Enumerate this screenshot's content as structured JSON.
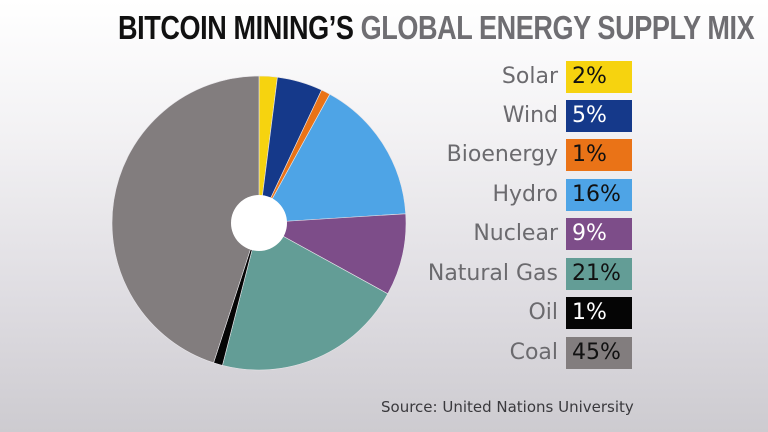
{
  "title": {
    "part1": "BITCOIN MINING’S",
    "part2": "GLOBAL ENERGY SUPPLY MIX"
  },
  "source": "Source: United Nations University",
  "legend": [
    {
      "label": "Solar",
      "value": "2%",
      "color": "#f6d30f",
      "text_color": "#111111"
    },
    {
      "label": "Wind",
      "value": "5%",
      "color": "#15398a",
      "text_color": "#ffffff"
    },
    {
      "label": "Bioenergy",
      "value": "1%",
      "color": "#ea7317",
      "text_color": "#111111"
    },
    {
      "label": "Hydro",
      "value": "16%",
      "color": "#4ea4e6",
      "text_color": "#111111"
    },
    {
      "label": "Nuclear",
      "value": "9%",
      "color": "#7d4d89",
      "text_color": "#ffffff"
    },
    {
      "label": "Natural Gas",
      "value": "21%",
      "color": "#639d96",
      "text_color": "#111111"
    },
    {
      "label": "Oil",
      "value": "1%",
      "color": "#050505",
      "text_color": "#ffffff"
    },
    {
      "label": "Coal",
      "value": "45%",
      "color": "#827d7e",
      "text_color": "#111111"
    }
  ],
  "chart_data": {
    "type": "pie",
    "title": "Bitcoin Mining's Global Energy Supply Mix",
    "categories": [
      "Solar",
      "Wind",
      "Bioenergy",
      "Hydro",
      "Nuclear",
      "Natural Gas",
      "Oil",
      "Coal"
    ],
    "values": [
      2,
      5,
      1,
      16,
      9,
      21,
      1,
      45
    ],
    "unit": "%",
    "colors": [
      "#f6d30f",
      "#15398a",
      "#ea7317",
      "#4ea4e6",
      "#7d4d89",
      "#639d96",
      "#050505",
      "#827d7e"
    ],
    "start_angle": "12 o'clock, clockwise",
    "donut_hole": true,
    "legend_position": "right",
    "source": "United Nations University"
  }
}
